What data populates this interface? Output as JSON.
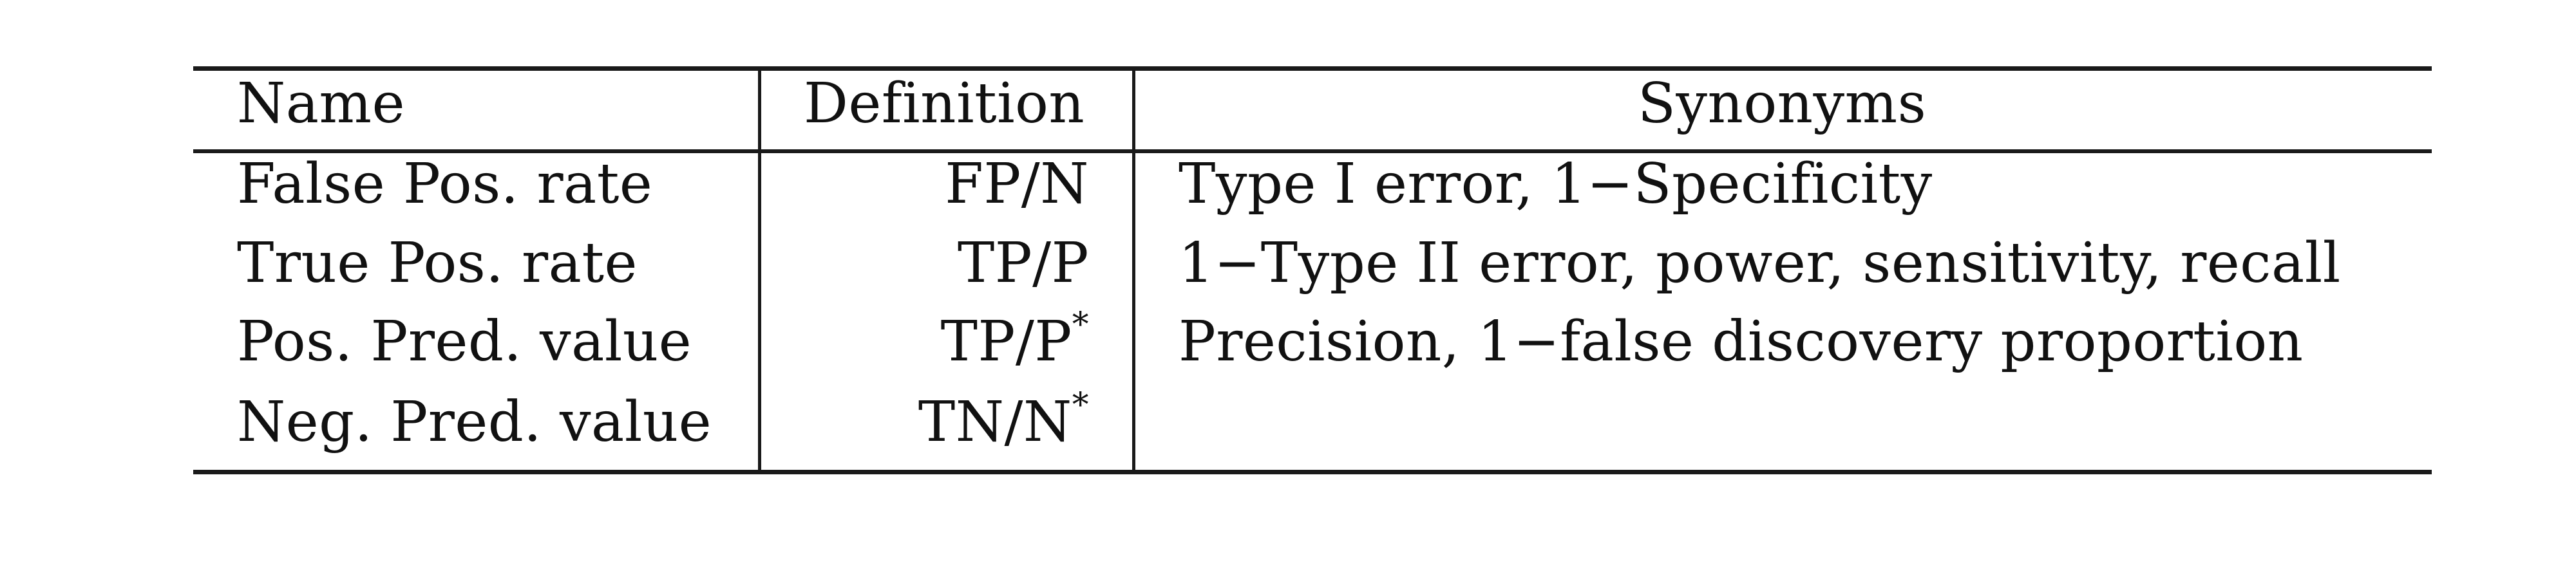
{
  "table": {
    "headers": {
      "name": "Name",
      "definition": "Definition",
      "synonyms": "Synonyms"
    },
    "rows": [
      {
        "name": "False Pos. rate",
        "definition": "FP/N",
        "definition_sup": "",
        "synonyms": "Type I error, 1−Specificity"
      },
      {
        "name": "True Pos. rate",
        "definition": "TP/P",
        "definition_sup": "",
        "synonyms": "1−Type II error, power, sensitivity, recall"
      },
      {
        "name": "Pos. Pred. value",
        "definition": "TP/P",
        "definition_sup": "*",
        "synonyms": "Precision, 1−false discovery proportion"
      },
      {
        "name": "Neg. Pred. value",
        "definition": "TN/N",
        "definition_sup": "*",
        "synonyms": ""
      }
    ]
  }
}
